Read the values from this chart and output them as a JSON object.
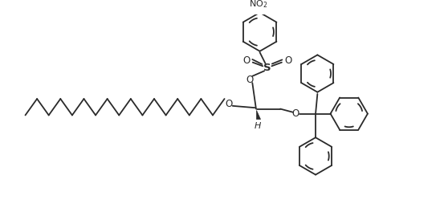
{
  "bg_color": "#ffffff",
  "line_color": "#2a2a2a",
  "line_width": 1.3,
  "figsize": [
    5.48,
    2.59
  ],
  "dpi": 100,
  "xlim": [
    0,
    10.96
  ],
  "ylim": [
    0,
    5.18
  ]
}
